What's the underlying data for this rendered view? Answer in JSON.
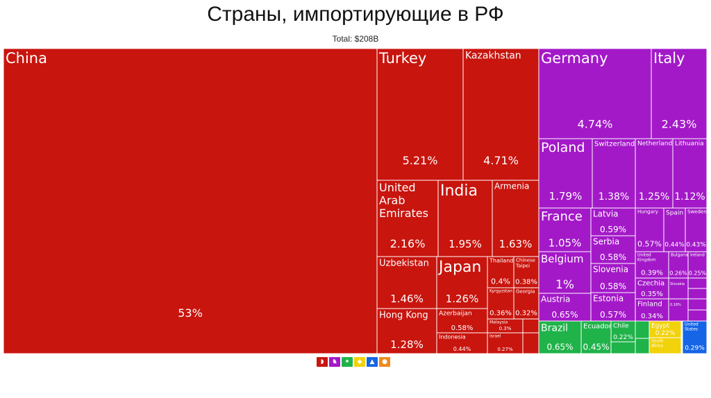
{
  "title": "Страны, импортирующие в РФ",
  "subtitle": "Total: $208B",
  "colors": {
    "asia": "#c8150e",
    "europe": "#a319c8",
    "south_america": "#1fb34a",
    "africa": "#f2d20a",
    "north_america": "#1565e6",
    "oceania": "#f08a1c",
    "border": "#ffffff"
  },
  "legend": [
    {
      "region": "asia",
      "icon": "asia-icon"
    },
    {
      "region": "europe",
      "icon": "europe-icon"
    },
    {
      "region": "south_america",
      "icon": "south-america-icon"
    },
    {
      "region": "africa",
      "icon": "africa-icon"
    },
    {
      "region": "north_america",
      "icon": "north-america-icon"
    },
    {
      "region": "oceania",
      "icon": "oceania-icon"
    }
  ],
  "chart_data": {
    "type": "treemap",
    "title": "Страны, импортирующие в РФ",
    "subtitle": "Total: $208B",
    "unit": "% of total",
    "series": [
      {
        "name": "China",
        "value": 53,
        "label": "53%",
        "region": "asia"
      },
      {
        "name": "Turkey",
        "value": 5.21,
        "label": "5.21%",
        "region": "asia"
      },
      {
        "name": "Kazakhstan",
        "value": 4.71,
        "label": "4.71%",
        "region": "asia"
      },
      {
        "name": "United Arab Emirates",
        "value": 2.16,
        "label": "2.16%",
        "region": "asia"
      },
      {
        "name": "India",
        "value": 1.95,
        "label": "1.95%",
        "region": "asia"
      },
      {
        "name": "Armenia",
        "value": 1.63,
        "label": "1.63%",
        "region": "asia"
      },
      {
        "name": "Uzbekistan",
        "value": 1.46,
        "label": "1.46%",
        "region": "asia"
      },
      {
        "name": "Japan",
        "value": 1.26,
        "label": "1.26%",
        "region": "asia"
      },
      {
        "name": "Thailand",
        "value": 0.4,
        "label": "0.4%",
        "region": "asia"
      },
      {
        "name": "Chinese Taipei",
        "value": 0.38,
        "label": "0.38%",
        "region": "asia"
      },
      {
        "name": "Kyrgyzstan",
        "value": 0.36,
        "label": "0.36%",
        "region": "asia"
      },
      {
        "name": "Georgia",
        "value": 0.32,
        "label": "0.32%",
        "region": "asia"
      },
      {
        "name": "Hong Kong",
        "value": 1.28,
        "label": "1.28%",
        "region": "asia"
      },
      {
        "name": "Azerbaijan",
        "value": 0.58,
        "label": "0.58%",
        "region": "asia"
      },
      {
        "name": "Malaysia",
        "value": 0.3,
        "label": "0.3%",
        "region": "asia"
      },
      {
        "name": "Indonesia",
        "value": 0.44,
        "label": "0.44%",
        "region": "asia"
      },
      {
        "name": "Israel",
        "value": 0.27,
        "label": "0.27%",
        "region": "asia"
      },
      {
        "name": "Germany",
        "value": 4.74,
        "label": "4.74%",
        "region": "europe"
      },
      {
        "name": "Italy",
        "value": 2.43,
        "label": "2.43%",
        "region": "europe"
      },
      {
        "name": "Poland",
        "value": 1.79,
        "label": "1.79%",
        "region": "europe"
      },
      {
        "name": "Switzerland",
        "value": 1.38,
        "label": "1.38%",
        "region": "europe"
      },
      {
        "name": "Netherlands",
        "value": 1.25,
        "label": "1.25%",
        "region": "europe"
      },
      {
        "name": "Lithuania",
        "value": 1.12,
        "label": "1.12%",
        "region": "europe"
      },
      {
        "name": "France",
        "value": 1.05,
        "label": "1.05%",
        "region": "europe"
      },
      {
        "name": "Latvia",
        "value": 0.59,
        "label": "0.59%",
        "region": "europe"
      },
      {
        "name": "Hungary",
        "value": 0.57,
        "label": "0.57%",
        "region": "europe"
      },
      {
        "name": "Spain",
        "value": 0.44,
        "label": "0.44%",
        "region": "europe"
      },
      {
        "name": "Sweden",
        "value": 0.43,
        "label": "0.43%",
        "region": "europe"
      },
      {
        "name": "Serbia",
        "value": 0.58,
        "label": "0.58%",
        "region": "europe"
      },
      {
        "name": "Belgium",
        "value": 1,
        "label": "1%",
        "region": "europe"
      },
      {
        "name": "United Kingdom",
        "value": 0.39,
        "label": "0.39%",
        "region": "europe"
      },
      {
        "name": "Bulgaria",
        "value": 0.26,
        "label": "0.26%",
        "region": "europe"
      },
      {
        "name": "Ireland",
        "value": 0.25,
        "label": "0.25%",
        "region": "europe"
      },
      {
        "name": "Slovenia",
        "value": 0.58,
        "label": "0.58%",
        "region": "europe"
      },
      {
        "name": "Czechia",
        "value": 0.35,
        "label": "0.35%",
        "region": "europe"
      },
      {
        "name": "Austria",
        "value": 0.65,
        "label": "0.65%",
        "region": "europe"
      },
      {
        "name": "Estonia",
        "value": 0.57,
        "label": "0.57%",
        "region": "europe"
      },
      {
        "name": "Finland",
        "value": 0.34,
        "label": "0.34%",
        "region": "europe"
      },
      {
        "name": "Brazil",
        "value": 0.65,
        "label": "0.65%",
        "region": "south_america"
      },
      {
        "name": "Ecuador",
        "value": 0.45,
        "label": "0.45%",
        "region": "south_america"
      },
      {
        "name": "Chile",
        "value": 0.22,
        "label": "0.22%",
        "region": "south_america"
      },
      {
        "name": "Egypt",
        "value": 0.22,
        "label": "0.22%",
        "region": "africa"
      },
      {
        "name": "South Africa",
        "value": null,
        "label": "",
        "region": "africa"
      },
      {
        "name": "United States",
        "value": 0.29,
        "label": "0.29%",
        "region": "north_america"
      }
    ],
    "minor_cells": [
      {
        "label": "Slovakia",
        "region": "europe"
      },
      {
        "label": "0.18%",
        "region": "europe"
      }
    ]
  }
}
